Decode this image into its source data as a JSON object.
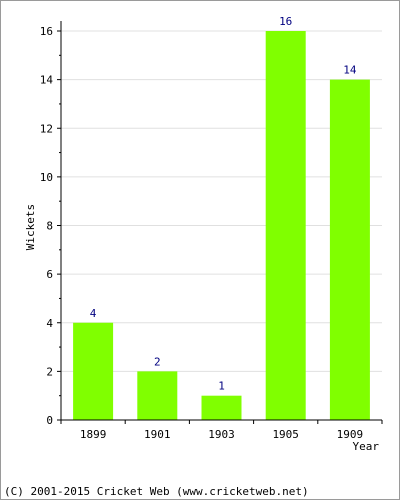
{
  "chart_data": {
    "type": "bar",
    "categories": [
      "1899",
      "1901",
      "1903",
      "1905",
      "1909"
    ],
    "values": [
      4,
      2,
      1,
      16,
      14
    ],
    "xlabel": "Year",
    "ylabel": "Wickets",
    "ylim": [
      0,
      16
    ],
    "yticks": [
      0,
      2,
      4,
      6,
      8,
      10,
      12,
      14,
      16
    ],
    "grid": true,
    "bar_color": "#80ff00",
    "data_label_color": "#000080"
  },
  "footer": {
    "copyright": "(C) 2001-2015 Cricket Web (www.cricketweb.net)"
  }
}
